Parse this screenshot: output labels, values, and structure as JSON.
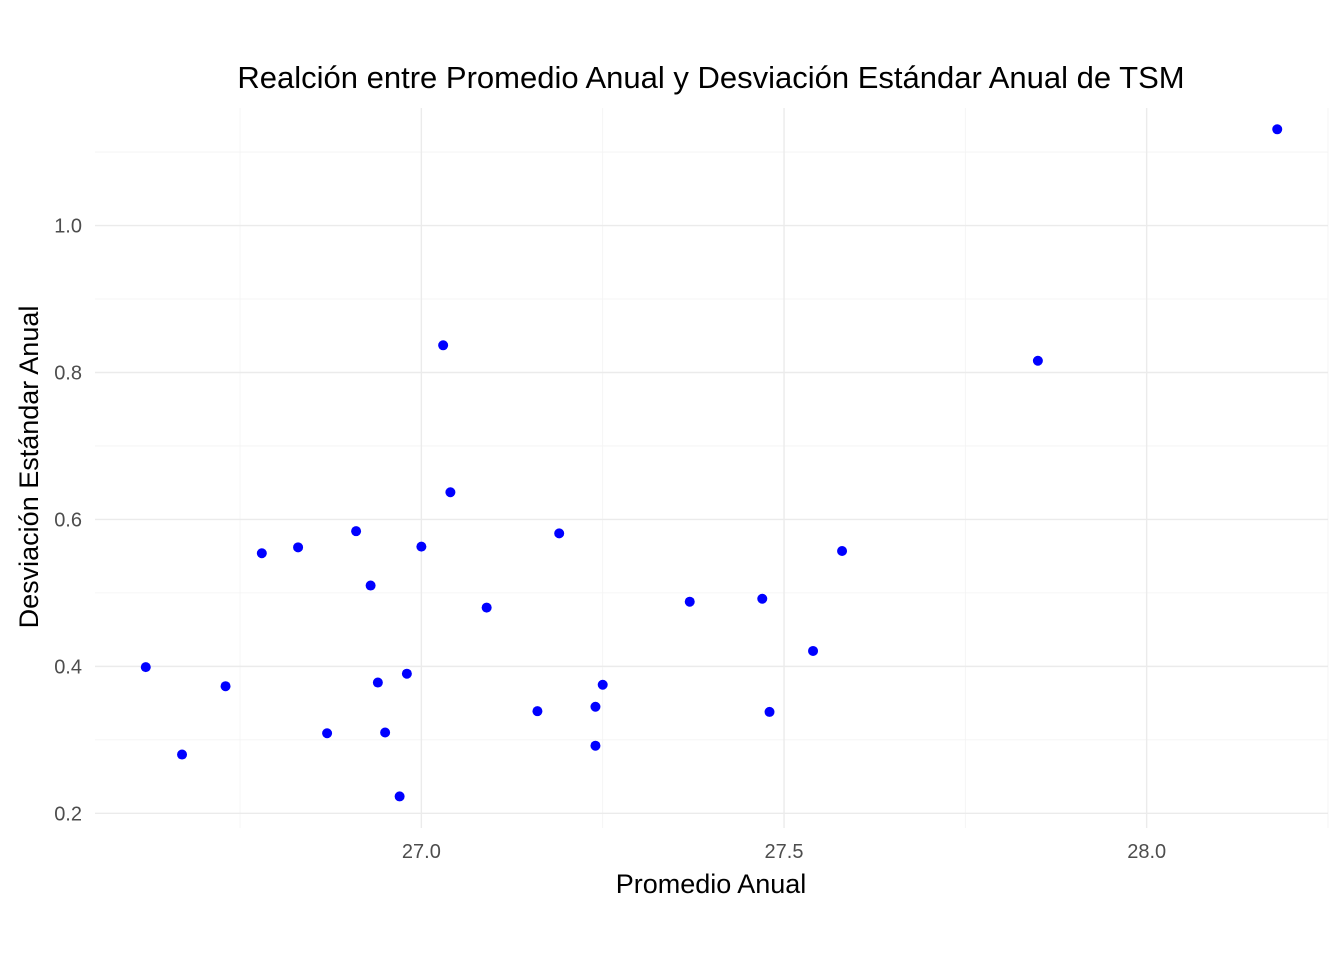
{
  "chart_data": {
    "type": "scatter",
    "title": "Realción entre Promedio Anual y Desviación Estándar Anual de TSM",
    "xlabel": "Promedio Anual",
    "ylabel": "Desviación Estándar Anual",
    "xlim": [
      26.55,
      28.25
    ],
    "ylim": [
      0.18,
      1.16
    ],
    "x_ticks": [
      27.0,
      27.5,
      28.0
    ],
    "x_tick_labels": [
      "27.0",
      "27.5",
      "28.0"
    ],
    "y_ticks": [
      0.2,
      0.4,
      0.6,
      0.8,
      1.0
    ],
    "y_tick_labels": [
      "0.2",
      "0.4",
      "0.6",
      "0.8",
      "1.0"
    ],
    "grid": true,
    "point_color": "#0000ff",
    "points": [
      {
        "x": 26.62,
        "y": 0.399
      },
      {
        "x": 26.67,
        "y": 0.28
      },
      {
        "x": 26.73,
        "y": 0.373
      },
      {
        "x": 26.78,
        "y": 0.554
      },
      {
        "x": 26.83,
        "y": 0.562
      },
      {
        "x": 26.87,
        "y": 0.309
      },
      {
        "x": 26.91,
        "y": 0.584
      },
      {
        "x": 26.93,
        "y": 0.51
      },
      {
        "x": 26.94,
        "y": 0.378
      },
      {
        "x": 26.95,
        "y": 0.31
      },
      {
        "x": 26.97,
        "y": 0.223
      },
      {
        "x": 26.98,
        "y": 0.39
      },
      {
        "x": 27.0,
        "y": 0.563
      },
      {
        "x": 27.03,
        "y": 0.837
      },
      {
        "x": 27.04,
        "y": 0.637
      },
      {
        "x": 27.09,
        "y": 0.48
      },
      {
        "x": 27.16,
        "y": 0.339
      },
      {
        "x": 27.19,
        "y": 0.581
      },
      {
        "x": 27.24,
        "y": 0.345
      },
      {
        "x": 27.24,
        "y": 0.292
      },
      {
        "x": 27.25,
        "y": 0.375
      },
      {
        "x": 27.37,
        "y": 0.488
      },
      {
        "x": 27.47,
        "y": 0.492
      },
      {
        "x": 27.48,
        "y": 0.338
      },
      {
        "x": 27.54,
        "y": 0.421
      },
      {
        "x": 27.58,
        "y": 0.557
      },
      {
        "x": 27.85,
        "y": 0.816
      },
      {
        "x": 28.18,
        "y": 1.131
      }
    ]
  }
}
